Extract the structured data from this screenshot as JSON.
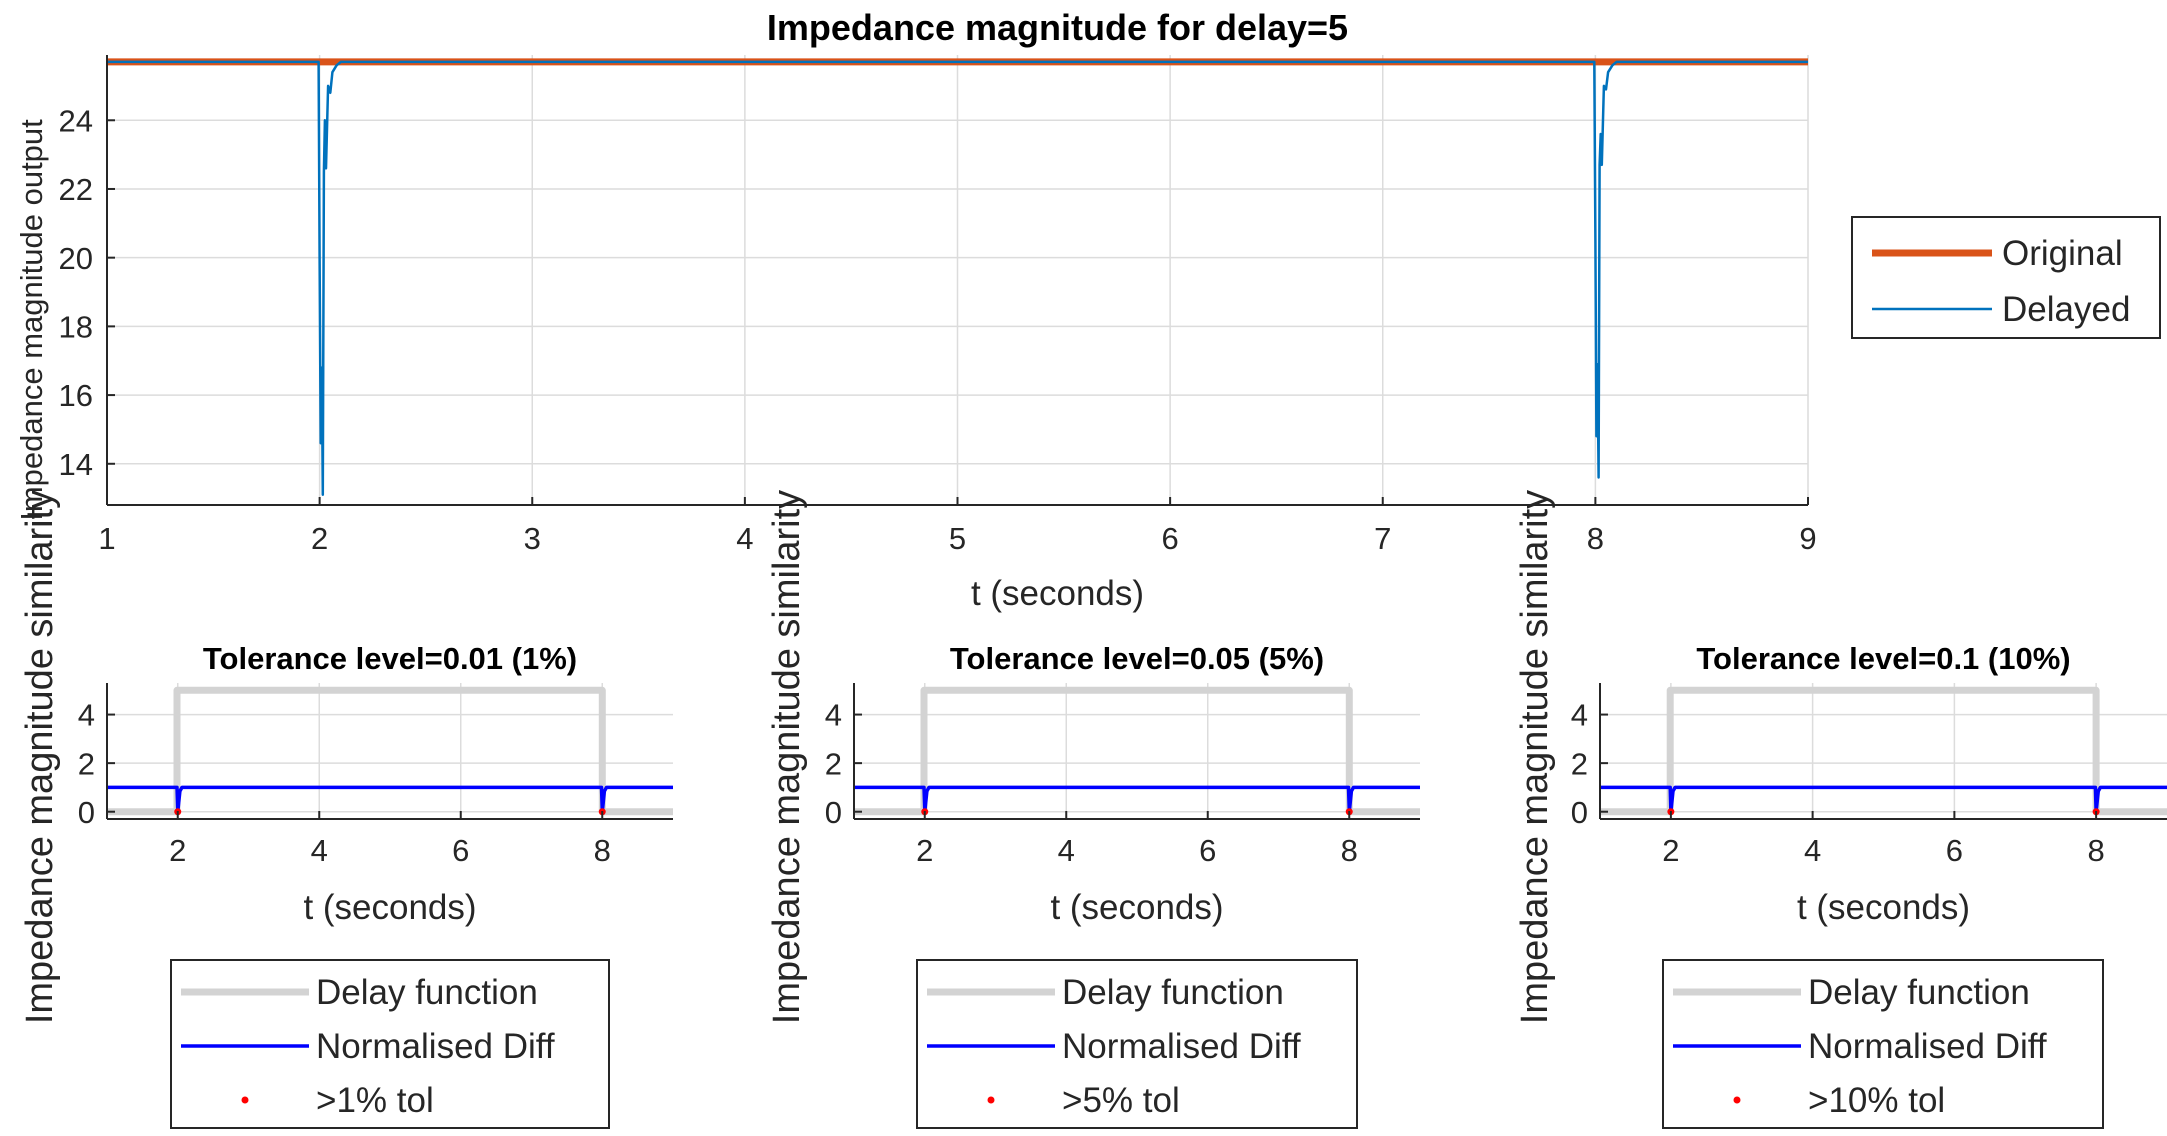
{
  "chart_data": [
    {
      "type": "line",
      "title": "Impedance magnitude for delay=5",
      "xlabel": "t (seconds)",
      "ylabel": "Impedance magnitude output",
      "xlim": [
        1,
        9
      ],
      "ylim": [
        12.8,
        25.9
      ],
      "xticks": [
        "1",
        "2",
        "3",
        "4",
        "5",
        "6",
        "7",
        "8",
        "9"
      ],
      "yticks": [
        "14",
        "16",
        "18",
        "20",
        "22",
        "24"
      ],
      "grid": true,
      "legend_position": "outside-right",
      "series": [
        {
          "name": "Original",
          "color": "#D95319",
          "x": [
            1,
            9
          ],
          "y": [
            25.7,
            25.7
          ]
        },
        {
          "name": "Delayed",
          "color": "#0072BD",
          "x": [
            1,
            1.995,
            2.0,
            2.005,
            2.01,
            2.015,
            2.02,
            2.025,
            2.03,
            2.04,
            2.05,
            2.06,
            2.08,
            2.1,
            7.995,
            8.0,
            8.005,
            8.01,
            8.015,
            8.02,
            8.025,
            8.03,
            8.04,
            8.05,
            8.06,
            8.08,
            8.1,
            9
          ],
          "y": [
            25.7,
            25.7,
            20.0,
            14.6,
            16.8,
            13.1,
            22.5,
            24.0,
            22.6,
            25.0,
            24.8,
            25.4,
            25.6,
            25.7,
            25.7,
            20.5,
            14.8,
            16.9,
            13.6,
            22.7,
            23.6,
            22.7,
            25.0,
            24.9,
            25.4,
            25.6,
            25.7,
            25.7
          ]
        }
      ]
    },
    {
      "type": "line",
      "title": "Tolerance level=0.01 (1%)",
      "xlabel": "t (seconds)",
      "ylabel": "Impedance magnitude similarity",
      "xlim": [
        1,
        9
      ],
      "ylim": [
        -0.3,
        5.3
      ],
      "xticks": [
        "2",
        "4",
        "6",
        "8"
      ],
      "yticks": [
        "0",
        "2",
        "4"
      ],
      "grid": true,
      "legend_position": "below",
      "series": [
        {
          "name": "Delay function",
          "color": "#D3D3D3",
          "x": [
            1,
            1.99,
            1.99,
            8.0,
            8.0,
            9
          ],
          "y": [
            0,
            0,
            5,
            5,
            0,
            0
          ]
        },
        {
          "name": "Normalised Diff",
          "color": "#0000FF",
          "x": [
            1,
            1.99,
            2.0,
            2.03,
            2.06,
            7.99,
            8.0,
            8.03,
            8.06,
            9
          ],
          "y": [
            1,
            1,
            0,
            0.85,
            1,
            1,
            0,
            0.85,
            1,
            1
          ]
        },
        {
          "name": ">1% tol",
          "color": "#FF0000",
          "x": [
            2.0,
            8.0
          ],
          "y": [
            0,
            0
          ]
        }
      ]
    },
    {
      "type": "line",
      "title": "Tolerance level=0.05 (5%)",
      "xlabel": "t (seconds)",
      "ylabel": "Impedance magnitude similarity",
      "xlim": [
        1,
        9
      ],
      "ylim": [
        -0.3,
        5.3
      ],
      "xticks": [
        "2",
        "4",
        "6",
        "8"
      ],
      "yticks": [
        "0",
        "2",
        "4"
      ],
      "grid": true,
      "legend_position": "below",
      "series": [
        {
          "name": "Delay function",
          "color": "#D3D3D3",
          "x": [
            1,
            1.99,
            1.99,
            8.0,
            8.0,
            9
          ],
          "y": [
            0,
            0,
            5,
            5,
            0,
            0
          ]
        },
        {
          "name": "Normalised Diff",
          "color": "#0000FF",
          "x": [
            1,
            1.99,
            2.0,
            2.03,
            2.06,
            7.99,
            8.0,
            8.03,
            8.06,
            9
          ],
          "y": [
            1,
            1,
            0,
            0.85,
            1,
            1,
            0,
            0.85,
            1,
            1
          ]
        },
        {
          "name": ">5% tol",
          "color": "#FF0000",
          "x": [
            2.0,
            8.0
          ],
          "y": [
            0,
            0
          ]
        }
      ]
    },
    {
      "type": "line",
      "title": "Tolerance level=0.1 (10%)",
      "xlabel": "t (seconds)",
      "ylabel": "Impedance magnitude similarity",
      "xlim": [
        1,
        9
      ],
      "ylim": [
        -0.3,
        5.3
      ],
      "xticks": [
        "2",
        "4",
        "6",
        "8"
      ],
      "yticks": [
        "0",
        "2",
        "4"
      ],
      "grid": true,
      "legend_position": "below",
      "series": [
        {
          "name": "Delay function",
          "color": "#D3D3D3",
          "x": [
            1,
            1.99,
            1.99,
            8.0,
            8.0,
            9
          ],
          "y": [
            0,
            0,
            5,
            5,
            0,
            0
          ]
        },
        {
          "name": "Normalised Diff",
          "color": "#0000FF",
          "x": [
            1,
            1.99,
            2.0,
            2.03,
            2.06,
            7.99,
            8.0,
            8.03,
            8.06,
            9
          ],
          "y": [
            1,
            1,
            0,
            0.85,
            1,
            1,
            0,
            0.85,
            1,
            1
          ]
        },
        {
          "name": ">10% tol",
          "color": "#FF0000",
          "x": [
            2.0,
            8.0
          ],
          "y": [
            0,
            0
          ]
        }
      ]
    }
  ]
}
